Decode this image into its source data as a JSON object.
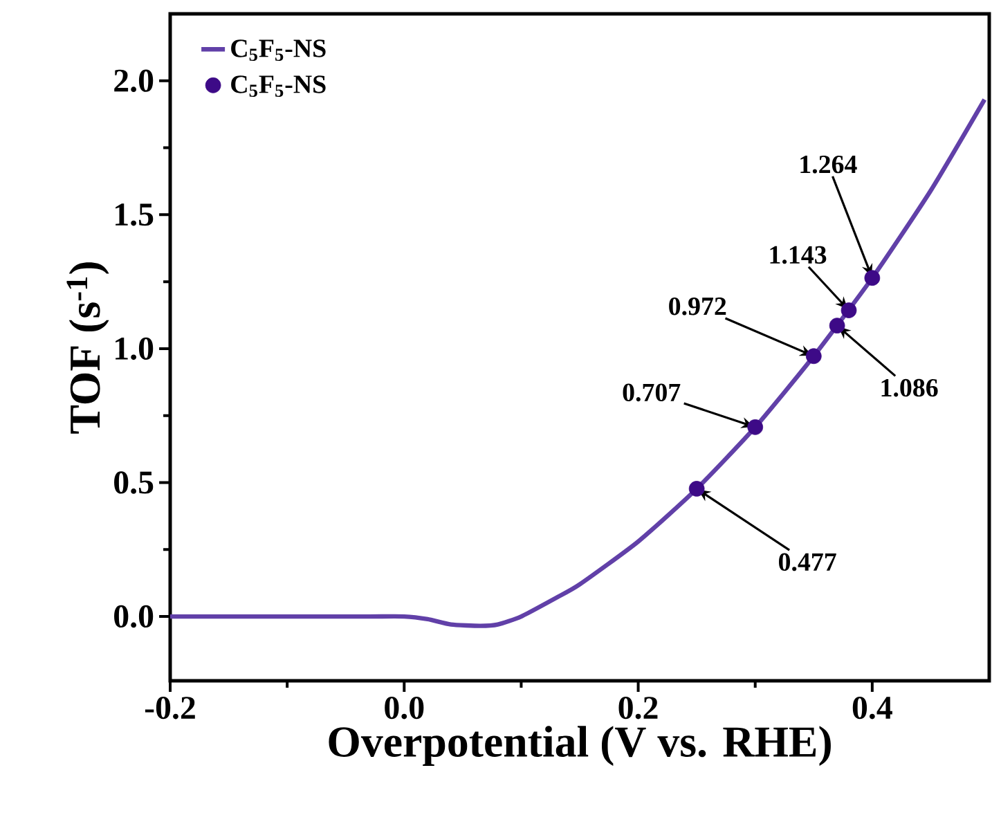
{
  "chart_data": {
    "type": "line",
    "xlabel": "Overpotential (V vs. RHE)",
    "ylabel": "TOF (s$^{-1}$)",
    "xlim": [
      -0.2,
      0.5
    ],
    "ylim": [
      -0.24,
      2.25
    ],
    "xticks": [
      {
        "value": -0.2,
        "label": "-0.2"
      },
      {
        "value": 0,
        "label": "0.0"
      },
      {
        "value": 0.2,
        "label": "0.2"
      },
      {
        "value": 0.4,
        "label": "0.4"
      }
    ],
    "yticks": [
      {
        "value": 0,
        "label": "0.0"
      },
      {
        "value": 0.5,
        "label": "0.5"
      },
      {
        "value": 1,
        "label": "1.0"
      },
      {
        "value": 1.5,
        "label": "1.5"
      },
      {
        "value": 2,
        "label": "2.0"
      }
    ],
    "legend": "top left",
    "grid": false,
    "series": [
      {
        "name": "C$_{5}$F$_{5}$-NS",
        "type": "line",
        "color": "#6140a8",
        "marker": "none",
        "line_style": "solid",
        "x": [
          -0.2,
          -0.1,
          -0.03,
          0.0,
          0.02,
          0.04,
          0.065,
          0.08,
          0.1,
          0.13,
          0.15,
          0.2,
          0.25,
          0.3,
          0.35,
          0.4,
          0.45,
          0.496
        ],
        "values": [
          0,
          0,
          0,
          0.0,
          -0.01,
          -0.03,
          -0.035,
          -0.03,
          0.0,
          0.07,
          0.12,
          0.28,
          0.477,
          0.707,
          0.972,
          1.264,
          1.59,
          1.93
        ]
      },
      {
        "name": "C$_{5}$F$_{5}$-NS",
        "type": "scatter",
        "color": "#3d0a87",
        "marker": "circle",
        "x": [
          0.25,
          0.3,
          0.35,
          0.37,
          0.38,
          0.4
        ],
        "values": [
          0.477,
          0.707,
          0.972,
          1.086,
          1.143,
          1.264
        ]
      }
    ],
    "annotations": [
      {
        "text": "0.477",
        "x": 0.25,
        "y": 0.477
      },
      {
        "text": "0.707",
        "x": 0.3,
        "y": 0.707
      },
      {
        "text": "0.972",
        "x": 0.35,
        "y": 0.972
      },
      {
        "text": "1.086",
        "x": 0.37,
        "y": 1.086
      },
      {
        "text": "1.143",
        "x": 0.38,
        "y": 1.143
      },
      {
        "text": "1.264",
        "x": 0.4,
        "y": 1.264
      }
    ]
  }
}
